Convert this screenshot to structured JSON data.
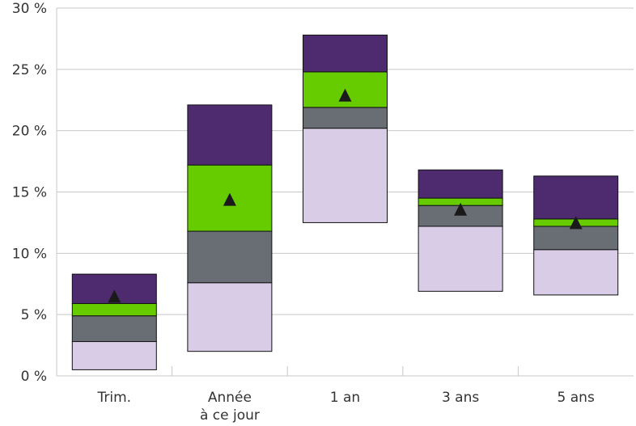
{
  "chart_data": {
    "type": "bar",
    "subtype": "floating-stacked-range",
    "categories": [
      "Trim.",
      [
        "Année",
        "à ce jour"
      ],
      "1 an",
      "3 ans",
      "5 ans"
    ],
    "ylim": [
      0,
      30
    ],
    "yticks": [
      0,
      5,
      10,
      15,
      20,
      25,
      30
    ],
    "ytick_labels": [
      "0 %",
      "5 %",
      "10 %",
      "15 %",
      "20 %",
      "25 %",
      "30 %"
    ],
    "grid": true,
    "bands": [
      {
        "color": "#d9cce6",
        "ranges": [
          [
            0.5,
            2.8
          ],
          [
            2.0,
            7.6
          ],
          [
            12.5,
            20.2
          ],
          [
            6.9,
            12.2
          ],
          [
            6.6,
            10.3
          ]
        ]
      },
      {
        "color": "#686e74",
        "ranges": [
          [
            2.8,
            4.9
          ],
          [
            7.6,
            11.8
          ],
          [
            20.2,
            21.9
          ],
          [
            12.2,
            13.9
          ],
          [
            10.3,
            12.2
          ]
        ]
      },
      {
        "color": "#66cc00",
        "ranges": [
          [
            4.9,
            5.9
          ],
          [
            11.8,
            17.2
          ],
          [
            21.9,
            24.8
          ],
          [
            13.9,
            14.5
          ],
          [
            12.2,
            12.8
          ]
        ]
      },
      {
        "color": "#4e2a6e",
        "ranges": [
          [
            5.9,
            8.3
          ],
          [
            17.2,
            22.1
          ],
          [
            24.8,
            27.8
          ],
          [
            14.5,
            16.8
          ],
          [
            12.8,
            16.3
          ]
        ]
      }
    ],
    "markers": {
      "shape": "triangle",
      "color": "#1a1a1a",
      "values": [
        6.5,
        14.4,
        22.9,
        13.6,
        12.5
      ]
    }
  }
}
